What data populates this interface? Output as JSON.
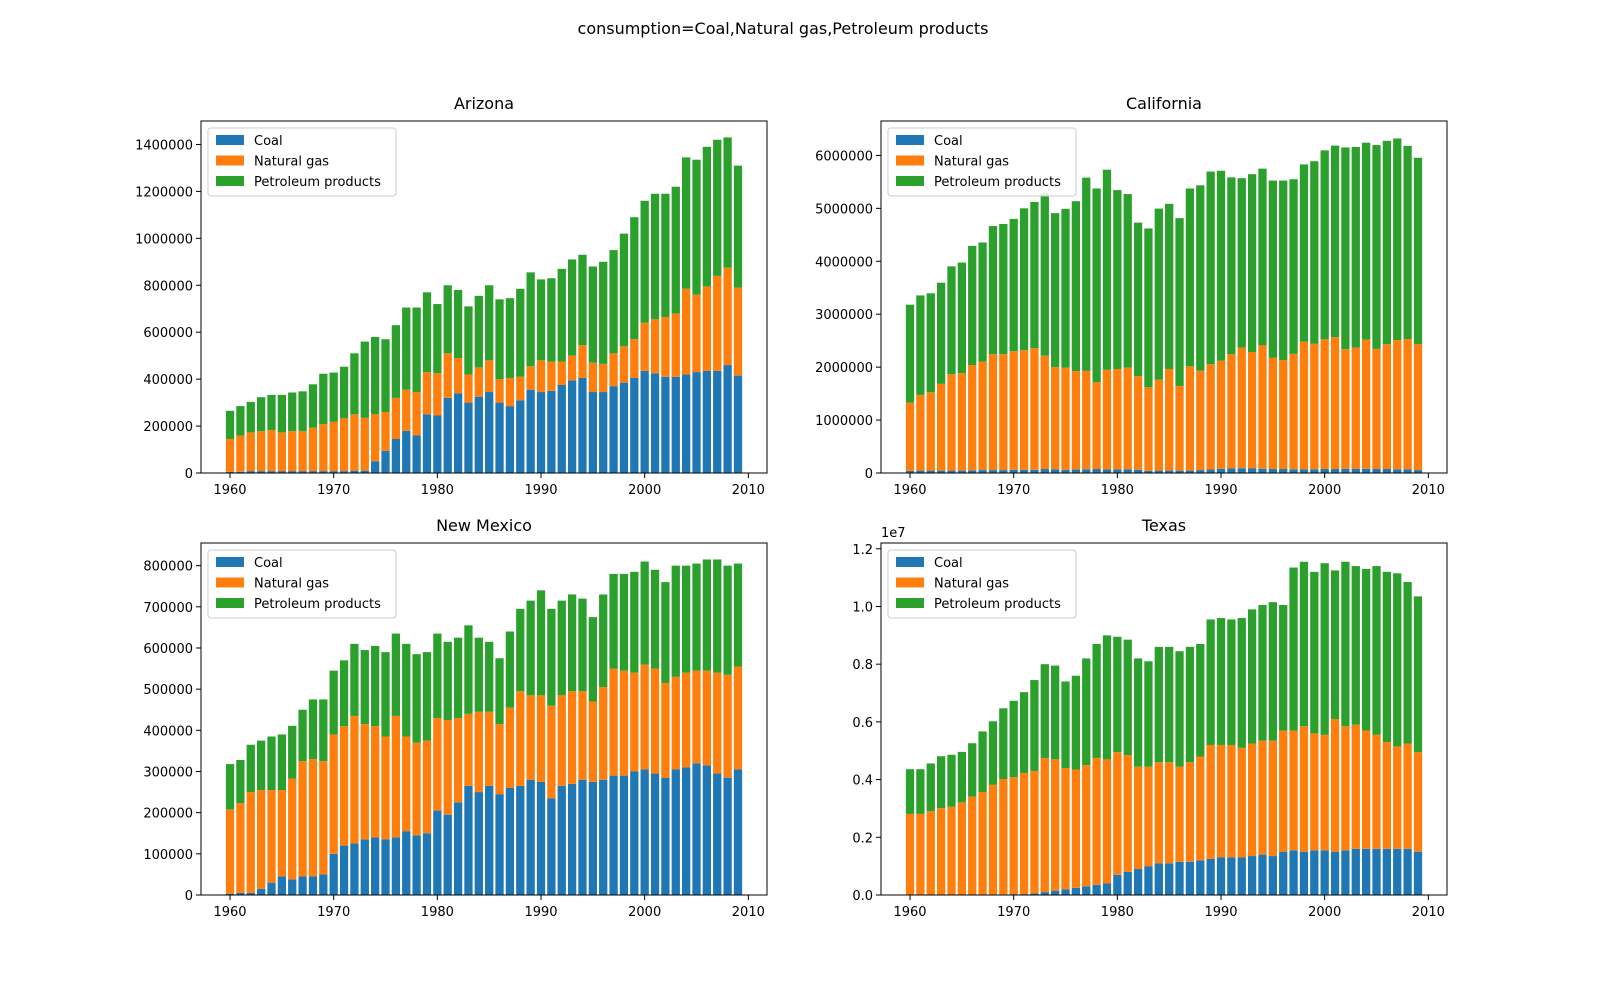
{
  "figure": {
    "suptitle": "consumption=Coal,Natural gas,Petroleum products"
  },
  "colors": {
    "coal": "#1f77b4",
    "natural_gas": "#ff7f0e",
    "petroleum": "#2ca02c"
  },
  "chart_data": [
    {
      "type": "bar",
      "stacked": true,
      "title": "Arizona",
      "x": [
        1960,
        1961,
        1962,
        1963,
        1964,
        1965,
        1966,
        1967,
        1968,
        1969,
        1970,
        1971,
        1972,
        1973,
        1974,
        1975,
        1976,
        1977,
        1978,
        1979,
        1980,
        1981,
        1982,
        1983,
        1984,
        1985,
        1986,
        1987,
        1988,
        1989,
        1990,
        1991,
        1992,
        1993,
        1994,
        1995,
        1996,
        1997,
        1998,
        1999,
        2000,
        2001,
        2002,
        2003,
        2004,
        2005,
        2006,
        2007,
        2008,
        2009
      ],
      "xticks": [
        1960,
        1970,
        1980,
        1990,
        2000,
        2010
      ],
      "xlim": [
        1957.2,
        2011.8
      ],
      "ylim": [
        0,
        1500000
      ],
      "yticks": [
        0,
        200000,
        400000,
        600000,
        800000,
        1000000,
        1200000,
        1400000
      ],
      "ytick_labels": [
        "0",
        "200000",
        "400000",
        "600000",
        "800000",
        "1000000",
        "1200000",
        "1400000"
      ],
      "legend": "top-left",
      "series": [
        {
          "name": "Coal",
          "values": [
            5000,
            5000,
            8000,
            8000,
            8000,
            8000,
            8000,
            8000,
            8000,
            8000,
            8000,
            8000,
            10000,
            10000,
            50000,
            95000,
            145000,
            180000,
            160000,
            250000,
            245000,
            320000,
            340000,
            300000,
            325000,
            345000,
            300000,
            285000,
            310000,
            355000,
            345000,
            350000,
            375000,
            395000,
            405000,
            345000,
            345000,
            370000,
            385000,
            405000,
            435000,
            425000,
            410000,
            410000,
            420000,
            430000,
            435000,
            435000,
            460000,
            415000
          ]
        },
        {
          "name": "Natural gas",
          "values": [
            140000,
            155000,
            165000,
            170000,
            175000,
            165000,
            170000,
            170000,
            185000,
            200000,
            210000,
            225000,
            240000,
            225000,
            200000,
            165000,
            175000,
            175000,
            185000,
            180000,
            180000,
            190000,
            150000,
            120000,
            125000,
            135000,
            100000,
            120000,
            100000,
            100000,
            135000,
            125000,
            100000,
            105000,
            140000,
            125000,
            120000,
            140000,
            155000,
            165000,
            205000,
            230000,
            255000,
            270000,
            365000,
            330000,
            360000,
            405000,
            415000,
            375000
          ]
        },
        {
          "name": "Petroleum products",
          "values": [
            120000,
            125000,
            130000,
            145000,
            150000,
            160000,
            165000,
            170000,
            185000,
            215000,
            210000,
            220000,
            260000,
            325000,
            330000,
            310000,
            310000,
            350000,
            360000,
            340000,
            295000,
            290000,
            290000,
            290000,
            305000,
            320000,
            340000,
            340000,
            375000,
            400000,
            345000,
            355000,
            395000,
            410000,
            385000,
            410000,
            435000,
            440000,
            480000,
            520000,
            520000,
            535000,
            525000,
            540000,
            560000,
            575000,
            595000,
            580000,
            555000,
            520000
          ]
        }
      ]
    },
    {
      "type": "bar",
      "stacked": true,
      "title": "California",
      "x": [
        1960,
        1961,
        1962,
        1963,
        1964,
        1965,
        1966,
        1967,
        1968,
        1969,
        1970,
        1971,
        1972,
        1973,
        1974,
        1975,
        1976,
        1977,
        1978,
        1979,
        1980,
        1981,
        1982,
        1983,
        1984,
        1985,
        1986,
        1987,
        1988,
        1989,
        1990,
        1991,
        1992,
        1993,
        1994,
        1995,
        1996,
        1997,
        1998,
        1999,
        2000,
        2001,
        2002,
        2003,
        2004,
        2005,
        2006,
        2007,
        2008,
        2009
      ],
      "xticks": [
        1960,
        1970,
        1980,
        1990,
        2000,
        2010
      ],
      "xlim": [
        1957.2,
        2011.8
      ],
      "ylim": [
        0,
        6650000
      ],
      "yticks": [
        0,
        1000000,
        2000000,
        3000000,
        4000000,
        5000000,
        6000000
      ],
      "ytick_labels": [
        "0",
        "1000000",
        "2000000",
        "3000000",
        "4000000",
        "5000000",
        "6000000"
      ],
      "legend": "top-left",
      "series": [
        {
          "name": "Coal",
          "values": [
            40000,
            45000,
            45000,
            45000,
            45000,
            45000,
            50000,
            55000,
            55000,
            55000,
            60000,
            60000,
            60000,
            75000,
            70000,
            60000,
            65000,
            70000,
            75000,
            70000,
            65000,
            70000,
            60000,
            40000,
            45000,
            45000,
            45000,
            45000,
            55000,
            65000,
            80000,
            85000,
            90000,
            85000,
            80000,
            75000,
            75000,
            70000,
            70000,
            70000,
            75000,
            75000,
            80000,
            80000,
            80000,
            75000,
            75000,
            70000,
            70000,
            55000
          ]
        },
        {
          "name": "Natural gas",
          "values": [
            1290000,
            1430000,
            1480000,
            1640000,
            1820000,
            1840000,
            1990000,
            2050000,
            2190000,
            2190000,
            2240000,
            2260000,
            2300000,
            2140000,
            1930000,
            1930000,
            1860000,
            1860000,
            1640000,
            1880000,
            1900000,
            1920000,
            1770000,
            1580000,
            1720000,
            1920000,
            1600000,
            1970000,
            1880000,
            1990000,
            2040000,
            2160000,
            2280000,
            2200000,
            2330000,
            2100000,
            2060000,
            2180000,
            2410000,
            2370000,
            2450000,
            2490000,
            2260000,
            2290000,
            2440000,
            2270000,
            2360000,
            2440000,
            2460000,
            2380000
          ]
        },
        {
          "name": "Petroleum products",
          "values": [
            1850000,
            1880000,
            1870000,
            1910000,
            2040000,
            2090000,
            2250000,
            2250000,
            2420000,
            2460000,
            2500000,
            2680000,
            2760000,
            3070000,
            2910000,
            3000000,
            3210000,
            3650000,
            3660000,
            3780000,
            3380000,
            3280000,
            2900000,
            3000000,
            3230000,
            3120000,
            3170000,
            3360000,
            3500000,
            3640000,
            3590000,
            3340000,
            3200000,
            3360000,
            3340000,
            3350000,
            3390000,
            3300000,
            3350000,
            3450000,
            3570000,
            3620000,
            3810000,
            3790000,
            3720000,
            3850000,
            3840000,
            3810000,
            3650000,
            3520000
          ]
        }
      ]
    },
    {
      "type": "bar",
      "stacked": true,
      "title": "New Mexico",
      "x": [
        1960,
        1961,
        1962,
        1963,
        1964,
        1965,
        1966,
        1967,
        1968,
        1969,
        1970,
        1971,
        1972,
        1973,
        1974,
        1975,
        1976,
        1977,
        1978,
        1979,
        1980,
        1981,
        1982,
        1983,
        1984,
        1985,
        1986,
        1987,
        1988,
        1989,
        1990,
        1991,
        1992,
        1993,
        1994,
        1995,
        1996,
        1997,
        1998,
        1999,
        2000,
        2001,
        2002,
        2003,
        2004,
        2005,
        2006,
        2007,
        2008,
        2009
      ],
      "xticks": [
        1960,
        1970,
        1980,
        1990,
        2000,
        2010
      ],
      "xlim": [
        1957.2,
        2011.8
      ],
      "ylim": [
        0,
        855000
      ],
      "yticks": [
        0,
        100000,
        200000,
        300000,
        400000,
        500000,
        600000,
        700000,
        800000
      ],
      "ytick_labels": [
        "0",
        "100000",
        "200000",
        "300000",
        "400000",
        "500000",
        "600000",
        "700000",
        "800000"
      ],
      "legend": "top-left",
      "series": [
        {
          "name": "Coal",
          "values": [
            3000,
            5000,
            5000,
            15000,
            30000,
            45000,
            38000,
            45000,
            45000,
            50000,
            100000,
            120000,
            125000,
            135000,
            140000,
            135000,
            140000,
            155000,
            145000,
            150000,
            205000,
            195000,
            225000,
            265000,
            250000,
            265000,
            245000,
            260000,
            265000,
            280000,
            275000,
            235000,
            265000,
            270000,
            280000,
            275000,
            280000,
            290000,
            290000,
            300000,
            305000,
            295000,
            285000,
            305000,
            310000,
            320000,
            315000,
            295000,
            285000,
            305000
          ]
        },
        {
          "name": "Natural gas",
          "values": [
            205000,
            218000,
            245000,
            240000,
            225000,
            210000,
            245000,
            280000,
            285000,
            275000,
            290000,
            290000,
            310000,
            280000,
            270000,
            250000,
            295000,
            230000,
            225000,
            225000,
            225000,
            230000,
            205000,
            175000,
            195000,
            180000,
            170000,
            195000,
            230000,
            205000,
            210000,
            225000,
            220000,
            225000,
            215000,
            195000,
            225000,
            260000,
            255000,
            240000,
            255000,
            255000,
            230000,
            225000,
            230000,
            225000,
            230000,
            245000,
            250000,
            250000
          ]
        },
        {
          "name": "Petroleum products",
          "values": [
            110000,
            105000,
            115000,
            120000,
            130000,
            135000,
            128000,
            125000,
            145000,
            150000,
            155000,
            160000,
            175000,
            180000,
            195000,
            205000,
            200000,
            225000,
            215000,
            215000,
            205000,
            190000,
            195000,
            215000,
            180000,
            170000,
            160000,
            185000,
            200000,
            230000,
            255000,
            235000,
            230000,
            235000,
            225000,
            205000,
            225000,
            230000,
            235000,
            245000,
            250000,
            240000,
            245000,
            270000,
            260000,
            260000,
            270000,
            275000,
            265000,
            250000
          ]
        }
      ]
    },
    {
      "type": "bar",
      "stacked": true,
      "title": "Texas",
      "x": [
        1960,
        1961,
        1962,
        1963,
        1964,
        1965,
        1966,
        1967,
        1968,
        1969,
        1970,
        1971,
        1972,
        1973,
        1974,
        1975,
        1976,
        1977,
        1978,
        1979,
        1980,
        1981,
        1982,
        1983,
        1984,
        1985,
        1986,
        1987,
        1988,
        1989,
        1990,
        1991,
        1992,
        1993,
        1994,
        1995,
        1996,
        1997,
        1998,
        1999,
        2000,
        2001,
        2002,
        2003,
        2004,
        2005,
        2006,
        2007,
        2008,
        2009
      ],
      "xticks": [
        1960,
        1970,
        1980,
        1990,
        2000,
        2010
      ],
      "xlim": [
        1957.2,
        2011.8
      ],
      "ylim": [
        0,
        12200000
      ],
      "yticks": [
        0,
        2000000,
        4000000,
        6000000,
        8000000,
        10000000,
        12000000
      ],
      "ytick_labels": [
        "0.0",
        "0.2",
        "0.4",
        "0.6",
        "0.8",
        "1.0",
        "1.2"
      ],
      "y_multiplier_label": "1e7",
      "legend": "top-left",
      "series": [
        {
          "name": "Coal",
          "values": [
            10000,
            10000,
            10000,
            10000,
            10000,
            10000,
            10000,
            20000,
            20000,
            20000,
            30000,
            30000,
            50000,
            100000,
            150000,
            200000,
            250000,
            300000,
            350000,
            400000,
            700000,
            800000,
            900000,
            1000000,
            1100000,
            1100000,
            1150000,
            1150000,
            1200000,
            1250000,
            1300000,
            1300000,
            1300000,
            1350000,
            1400000,
            1350000,
            1500000,
            1550000,
            1500000,
            1550000,
            1550000,
            1500000,
            1550000,
            1600000,
            1600000,
            1600000,
            1600000,
            1600000,
            1600000,
            1500000
          ]
        },
        {
          "name": "Natural gas",
          "values": [
            2800000,
            2800000,
            2900000,
            3000000,
            3050000,
            3200000,
            3400000,
            3550000,
            3800000,
            4000000,
            4050000,
            4200000,
            4250000,
            4650000,
            4550000,
            4200000,
            4100000,
            4200000,
            4400000,
            4300000,
            4250000,
            4050000,
            3550000,
            3450000,
            3500000,
            3500000,
            3300000,
            3450000,
            3600000,
            3950000,
            3900000,
            3900000,
            3800000,
            3900000,
            3950000,
            4000000,
            4200000,
            4150000,
            4350000,
            4050000,
            4000000,
            4600000,
            4300000,
            4300000,
            4100000,
            3950000,
            3700000,
            3550000,
            3650000,
            3450000
          ]
        },
        {
          "name": "Petroleum products",
          "values": [
            1550000,
            1550000,
            1650000,
            1800000,
            1800000,
            1750000,
            1850000,
            2100000,
            2200000,
            2450000,
            2650000,
            2800000,
            3150000,
            3250000,
            3250000,
            3000000,
            3250000,
            3700000,
            3950000,
            4300000,
            4000000,
            4000000,
            3750000,
            3650000,
            4000000,
            4000000,
            4000000,
            4000000,
            3900000,
            4350000,
            4400000,
            4350000,
            4500000,
            4650000,
            4700000,
            4800000,
            4350000,
            5650000,
            5700000,
            5600000,
            5950000,
            5150000,
            5700000,
            5500000,
            5600000,
            5850000,
            5900000,
            6000000,
            5600000,
            5400000
          ]
        }
      ]
    }
  ]
}
